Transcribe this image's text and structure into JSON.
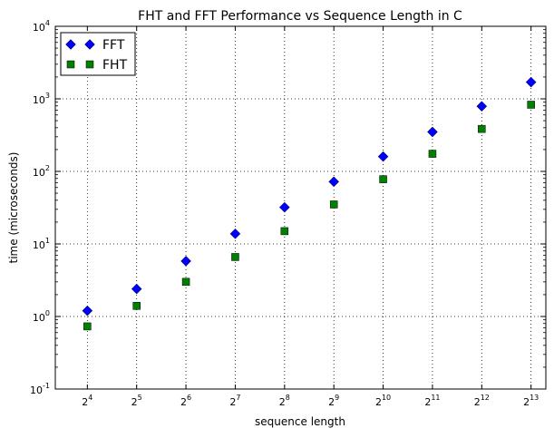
{
  "chart_data": {
    "type": "scatter",
    "title": "FHT and FFT Performance vs Sequence Length in C",
    "xlabel": "sequence length",
    "ylabel": "time (microseconds)",
    "x_scale": "log2",
    "y_scale": "log10",
    "x": [
      16,
      32,
      64,
      128,
      256,
      512,
      1024,
      2048,
      4096,
      8192
    ],
    "x_tick_labels": [
      {
        "base": "2",
        "exp": "4"
      },
      {
        "base": "2",
        "exp": "5"
      },
      {
        "base": "2",
        "exp": "6"
      },
      {
        "base": "2",
        "exp": "7"
      },
      {
        "base": "2",
        "exp": "8"
      },
      {
        "base": "2",
        "exp": "9"
      },
      {
        "base": "2",
        "exp": "10"
      },
      {
        "base": "2",
        "exp": "11"
      },
      {
        "base": "2",
        "exp": "12"
      },
      {
        "base": "2",
        "exp": "13"
      }
    ],
    "y_tick_labels": [
      {
        "base": "10",
        "exp": "-1",
        "value": 0.1
      },
      {
        "base": "10",
        "exp": "0",
        "value": 1
      },
      {
        "base": "10",
        "exp": "1",
        "value": 10
      },
      {
        "base": "10",
        "exp": "2",
        "value": 100
      },
      {
        "base": "10",
        "exp": "3",
        "value": 1000
      },
      {
        "base": "10",
        "exp": "4",
        "value": 10000
      }
    ],
    "ylim": [
      0.1,
      10000
    ],
    "grid": true,
    "legend_position": "top-left",
    "series": [
      {
        "name": "FFT",
        "marker": "diamond",
        "color": "#0000ff",
        "values": [
          1.2,
          2.4,
          5.8,
          13.8,
          32,
          72,
          160,
          350,
          790,
          1700
        ]
      },
      {
        "name": "FHT",
        "marker": "square",
        "color": "#008000",
        "values": [
          0.73,
          1.4,
          3.0,
          6.6,
          15,
          35,
          78,
          175,
          385,
          830
        ]
      }
    ]
  }
}
